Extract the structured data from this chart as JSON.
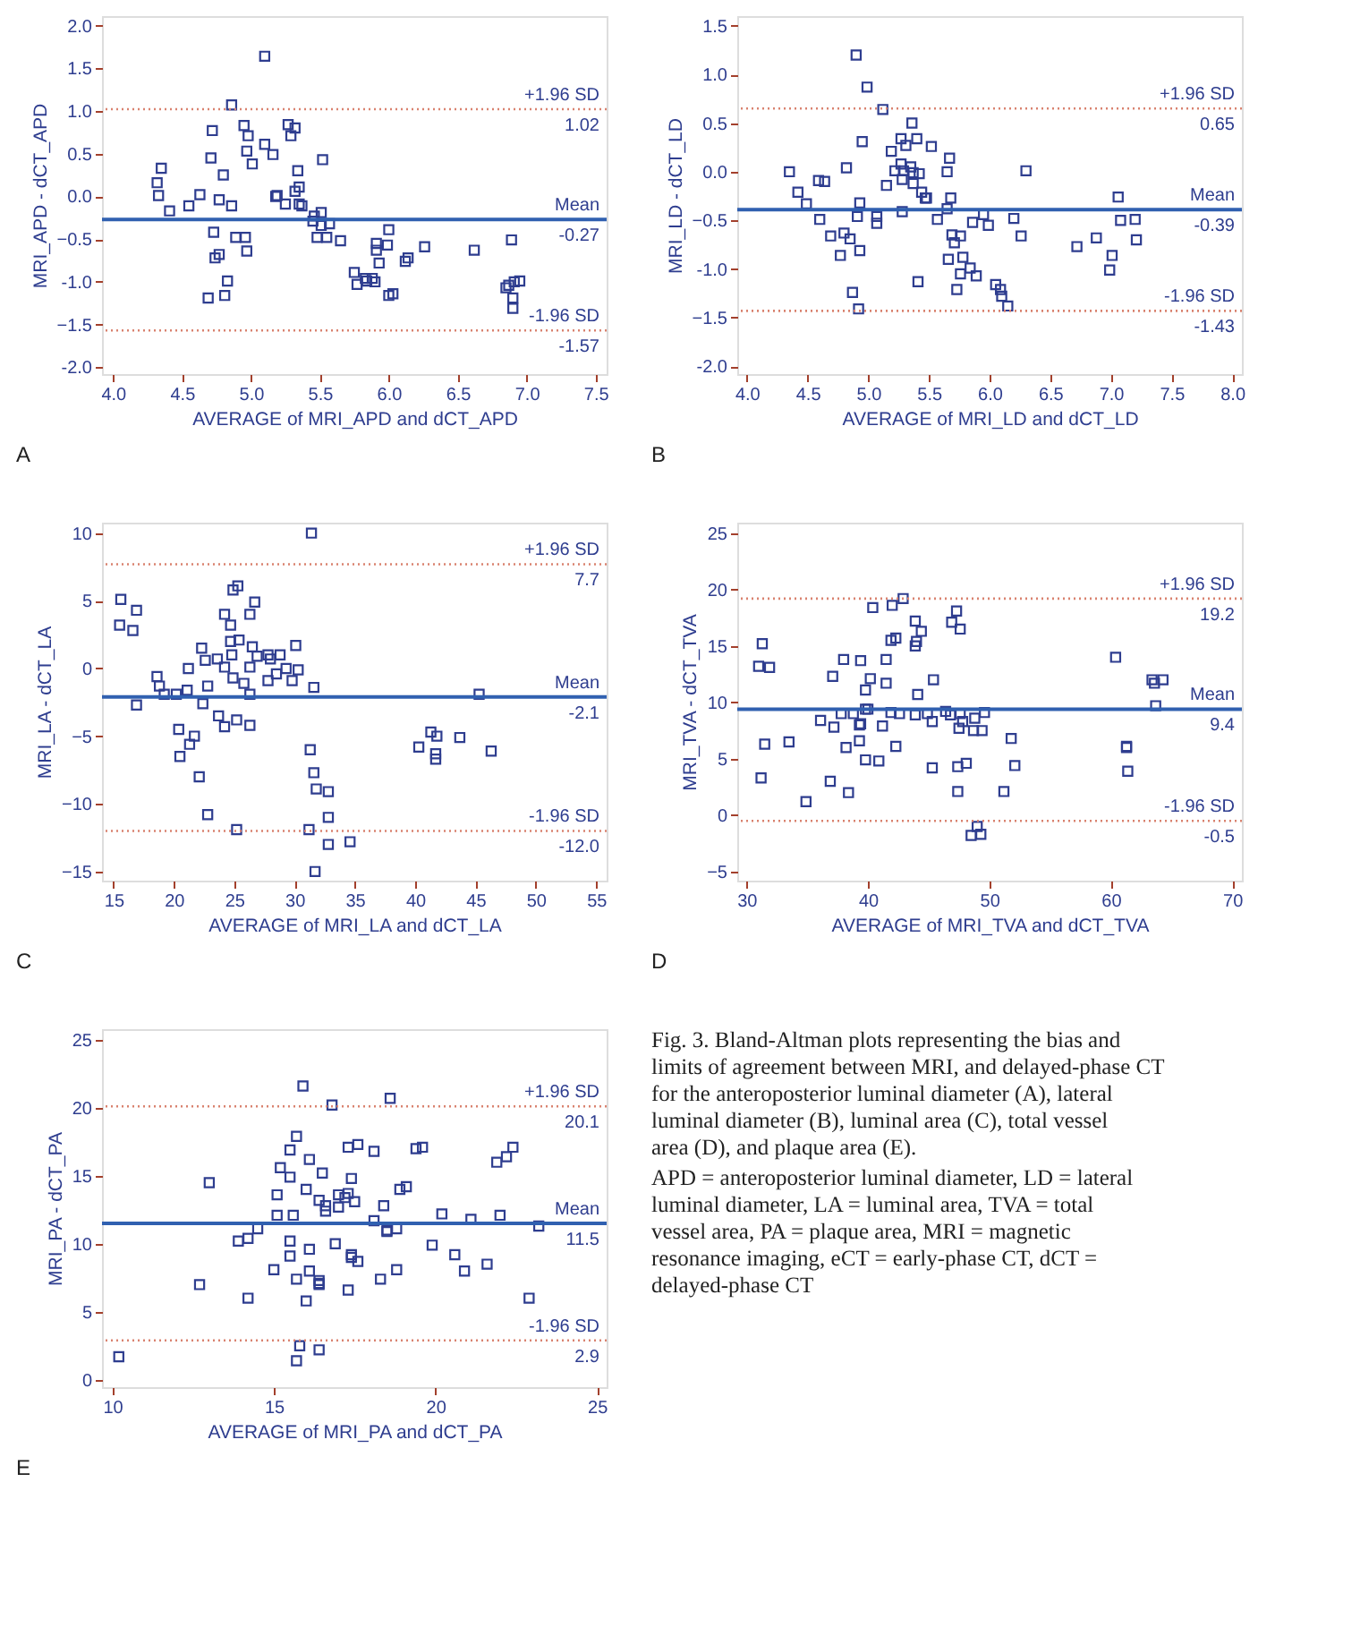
{
  "chart_data": [
    {
      "type": "scatter",
      "xlabel": "AVERAGE of MRI_APD and dCT_APD",
      "ylabel": "MRI_APD - dCT_APD",
      "marker": "square",
      "annotations": [
        "A",
        {
          "text": "1.02",
          "x": 7.58,
          "y": 1.02
        },
        {
          "text": "-0.27",
          "x": 7.58,
          "y": -0.27
        },
        {
          "text": "-1.57",
          "x": 7.58,
          "y": -1.57
        }
      ],
      "xlim": [
        3.92,
        7.58
      ],
      "xticks": [
        {
          "value": 4,
          "label": "4.0"
        },
        4.5,
        {
          "value": 5,
          "label": "5.0"
        },
        5.5,
        {
          "value": 6,
          "label": "6.0"
        },
        6.5,
        {
          "value": 7,
          "label": "7.0"
        },
        7.5
      ],
      "ylim": [
        -2.08,
        2.11
      ],
      "yticks": [
        {
          "value": 2,
          "label": "2.0"
        },
        1.5,
        {
          "value": 1,
          "label": "1.0"
        },
        0.5,
        {
          "value": 0,
          "label": "0.0"
        },
        -0.5,
        {
          "value": -1,
          "label": "-1.0"
        },
        -1.5,
        {
          "value": -2,
          "label": "-2.0"
        }
      ],
      "ref_lines": [
        {
          "axis": "y",
          "value": 1.02,
          "label": "+1.96 SD",
          "color": "#d9826f",
          "line_style": "dotted"
        },
        {
          "axis": "y",
          "value": -0.27,
          "label": "Mean",
          "color": "#3060b0",
          "line_style": "solid"
        },
        {
          "axis": "y",
          "value": -1.57,
          "label": "-1.96 SD",
          "color": "#d9826f",
          "line_style": "dotted"
        }
      ],
      "series": [
        {
          "color": "#2e3d8f",
          "x": [
            4.32,
            4.33,
            4.35,
            4.41,
            4.55,
            4.63,
            4.71,
            4.72,
            4.73,
            4.74,
            4.77,
            4.77,
            4.69,
            4.8,
            4.81,
            4.83,
            4.86,
            4.86,
            4.89,
            4.95,
            4.96,
            4.97,
            4.98,
            4.97,
            5.01,
            5.1,
            5.1,
            5.16,
            5.18,
            5.19,
            5.25,
            5.27,
            5.29,
            5.32,
            5.32,
            5.35,
            5.34,
            5.35,
            5.37,
            5.45,
            5.48,
            5.46,
            5.51,
            5.51,
            5.52,
            5.55,
            5.57,
            5.65,
            5.75,
            5.77,
            5.83,
            5.84,
            5.88,
            5.91,
            5.91,
            5.9,
            5.93,
            5.99,
            6.0,
            6.0,
            6.03,
            6.12,
            6.14,
            6.26,
            6.62,
            6.89,
            6.85,
            6.87,
            6.91,
            6.95,
            6.9,
            6.9
          ],
          "values": [
            0.16,
            0.01,
            0.33,
            -0.17,
            -0.11,
            0.02,
            0.45,
            0.77,
            -0.42,
            -0.72,
            -0.68,
            -0.04,
            -1.19,
            0.25,
            -1.16,
            -0.99,
            -0.11,
            1.07,
            -0.48,
            0.83,
            -0.48,
            0.53,
            0.71,
            -0.64,
            0.38,
            0.61,
            1.64,
            0.49,
            0.0,
            0.01,
            -0.09,
            0.84,
            0.71,
            0.8,
            0.06,
            0.11,
            0.3,
            -0.09,
            -0.11,
            -0.29,
            -0.48,
            -0.23,
            -0.19,
            -0.34,
            0.43,
            -0.48,
            -0.32,
            -0.52,
            -0.89,
            -1.03,
            -0.96,
            -0.99,
            -0.96,
            -0.55,
            -0.63,
            -1.0,
            -0.78,
            -0.57,
            -0.39,
            -1.16,
            -1.14,
            -0.76,
            -0.72,
            -0.59,
            -0.63,
            -0.51,
            -1.07,
            -1.04,
            -1.0,
            -0.99,
            -1.19,
            -1.31
          ]
        }
      ]
    },
    {
      "type": "scatter",
      "xlabel": "AVERAGE of MRI_LD and dCT_LD",
      "ylabel": "MRI_LD - dCT_LD",
      "marker": "square",
      "annotations": [
        "B",
        {
          "text": "0.65",
          "x": 8.08,
          "y": 0.65
        },
        {
          "text": "-0.39",
          "x": 8.08,
          "y": -0.39
        },
        {
          "text": "-1.43",
          "x": 8.08,
          "y": -1.43
        }
      ],
      "xlim": [
        3.92,
        8.08
      ],
      "xticks": [
        {
          "value": 4,
          "label": "4.0"
        },
        4.5,
        {
          "value": 5,
          "label": "5.0"
        },
        5.5,
        {
          "value": 6,
          "label": "6.0"
        },
        6.5,
        {
          "value": 7,
          "label": "7.0"
        },
        7.5,
        {
          "value": 8,
          "label": "8.0"
        }
      ],
      "ylim": [
        -2.08,
        1.6
      ],
      "yticks": [
        1.5,
        {
          "value": 1,
          "label": "1.0"
        },
        0.5,
        {
          "value": 0,
          "label": "0.0"
        },
        -0.5,
        {
          "value": -1,
          "label": "-1.0"
        },
        -1.5,
        {
          "value": -2,
          "label": "-2.0"
        }
      ],
      "ref_lines": [
        {
          "axis": "y",
          "value": 0.65,
          "label": "+1.96 SD",
          "color": "#d9826f",
          "line_style": "dotted"
        },
        {
          "axis": "y",
          "value": -0.39,
          "label": "Mean",
          "color": "#3060b0",
          "line_style": "solid"
        },
        {
          "axis": "y",
          "value": -1.43,
          "label": "-1.96 SD",
          "color": "#d9826f",
          "line_style": "dotted"
        }
      ],
      "series": [
        {
          "color": "#2e3d8f",
          "x": [
            4.35,
            4.42,
            4.49,
            4.59,
            4.64,
            4.6,
            4.69,
            4.77,
            4.8,
            4.82,
            4.85,
            4.87,
            4.9,
            4.91,
            4.92,
            4.93,
            4.93,
            4.95,
            4.99,
            5.07,
            5.07,
            5.12,
            5.15,
            5.19,
            5.22,
            5.27,
            5.27,
            5.28,
            5.28,
            5.29,
            5.31,
            5.35,
            5.37,
            5.36,
            5.37,
            5.4,
            5.41,
            5.42,
            5.44,
            5.47,
            5.48,
            5.52,
            5.57,
            5.65,
            5.65,
            5.66,
            5.67,
            5.68,
            5.69,
            5.71,
            5.73,
            5.76,
            5.76,
            5.78,
            5.84,
            5.86,
            5.89,
            5.95,
            5.99,
            6.05,
            6.09,
            6.1,
            6.15,
            6.2,
            6.26,
            6.3,
            6.72,
            6.88,
            6.99,
            7.01,
            7.06,
            7.08,
            7.2,
            7.21
          ],
          "values": [
            0.0,
            -0.21,
            -0.33,
            -0.09,
            -0.1,
            -0.49,
            -0.66,
            -0.86,
            -0.63,
            0.04,
            -0.69,
            -1.24,
            1.2,
            -0.46,
            -1.41,
            -0.81,
            -0.32,
            0.31,
            0.87,
            -0.46,
            -0.53,
            0.64,
            -0.14,
            0.21,
            0.01,
            0.34,
            0.08,
            -0.41,
            -0.08,
            0.01,
            0.27,
            0.05,
            -0.12,
            0.5,
            -0.01,
            0.34,
            -1.13,
            -0.02,
            -0.21,
            -0.27,
            -0.27,
            0.26,
            -0.49,
            0.0,
            -0.38,
            -0.9,
            0.14,
            -0.27,
            -0.65,
            -0.73,
            -1.21,
            -0.66,
            -1.05,
            -0.88,
            -0.99,
            -0.52,
            -1.07,
            -0.44,
            -0.55,
            -1.16,
            -1.21,
            -1.28,
            -1.38,
            -0.48,
            -0.66,
            0.01,
            -0.77,
            -0.68,
            -1.01,
            -0.86,
            -0.26,
            -0.5,
            -0.49,
            -0.7
          ]
        }
      ]
    },
    {
      "type": "scatter",
      "xlabel": "AVERAGE of MRI_LA and dCT_LA",
      "ylabel": "MRI_LA - dCT_LA",
      "marker": "square",
      "annotations": [
        "C",
        {
          "text": "7.7",
          "x": 55.87,
          "y": 7.7
        },
        {
          "text": "-2.1",
          "x": 55.87,
          "y": -2.1
        },
        {
          "text": "-12.0",
          "x": 55.87,
          "y": -12.0
        }
      ],
      "xlim": [
        14.04,
        55.87
      ],
      "xticks": [
        15,
        20,
        25,
        30,
        35,
        40,
        45,
        50,
        55
      ],
      "ylim": [
        -15.67,
        10.77
      ],
      "yticks": [
        10,
        5,
        0,
        -5,
        -10,
        -15
      ],
      "ref_lines": [
        {
          "axis": "y",
          "value": 7.7,
          "label": "+1.96 SD",
          "color": "#d9826f",
          "line_style": "dotted"
        },
        {
          "axis": "y",
          "value": -2.1,
          "label": "Mean",
          "color": "#3060b0",
          "line_style": "solid"
        },
        {
          "axis": "y",
          "value": -12.0,
          "label": "-1.96 SD",
          "color": "#d9826f",
          "line_style": "dotted"
        }
      ],
      "series": [
        {
          "color": "#2e3d8f",
          "x": [
            15.5,
            15.6,
            16.6,
            16.9,
            16.9,
            18.6,
            18.8,
            19.2,
            20.2,
            20.4,
            20.5,
            21.1,
            21.2,
            21.3,
            21.7,
            22.1,
            22.3,
            22.4,
            22.6,
            22.8,
            22.8,
            23.6,
            23.7,
            24.2,
            24.2,
            24.2,
            24.7,
            24.7,
            24.8,
            24.9,
            24.9,
            25.3,
            25.2,
            25.2,
            25.4,
            25.8,
            26.3,
            26.3,
            26.3,
            26.3,
            26.5,
            26.7,
            26.9,
            27.8,
            27.8,
            28.0,
            28.5,
            28.8,
            29.3,
            29.8,
            30.1,
            30.3,
            31.3,
            31.4,
            31.2,
            31.6,
            31.6,
            31.8,
            31.7,
            32.8,
            32.8,
            32.8,
            34.6,
            40.3,
            41.3,
            41.7,
            41.7,
            41.8,
            43.7,
            45.3,
            46.3
          ],
          "values": [
            3.2,
            5.1,
            2.8,
            4.3,
            -2.7,
            -0.6,
            -1.3,
            -1.9,
            -1.9,
            -4.5,
            -6.5,
            -1.6,
            0.0,
            -5.6,
            -5.0,
            -8.0,
            1.5,
            -2.6,
            0.6,
            -1.3,
            -10.8,
            0.7,
            -3.5,
            4.0,
            -4.3,
            0.1,
            3.2,
            2.0,
            1.0,
            -0.7,
            5.8,
            6.1,
            -3.8,
            -11.9,
            2.1,
            -1.1,
            4.0,
            0.1,
            -4.2,
            -1.9,
            1.6,
            4.9,
            0.9,
            1.0,
            -0.9,
            0.7,
            -0.4,
            1.0,
            0.0,
            -0.9,
            1.7,
            -0.1,
            -6.0,
            10.0,
            -11.9,
            -1.4,
            -7.7,
            -8.9,
            -15.0,
            -9.1,
            -11.0,
            -13.0,
            -12.8,
            -5.8,
            -4.7,
            -6.7,
            -6.3,
            -5.0,
            -5.1,
            -1.9,
            -6.1
          ]
        }
      ]
    },
    {
      "type": "scatter",
      "xlabel": "AVERAGE of MRI_TVA and dCT_TVA",
      "ylabel": "MRI_TVA - dCT_TVA",
      "marker": "square",
      "annotations": [
        "D",
        {
          "text": "19.2",
          "x": 70.8,
          "y": 19.2
        },
        {
          "text": "9.4",
          "x": 70.8,
          "y": 9.4
        },
        {
          "text": "-0.5",
          "x": 70.8,
          "y": -0.5
        }
      ],
      "xlim": [
        29.24,
        70.8
      ],
      "xticks": [
        30,
        40,
        50,
        60,
        70
      ],
      "ylim": [
        -5.8,
        25.93
      ],
      "yticks": [
        25,
        20,
        15,
        10,
        5,
        0,
        -5
      ],
      "ref_lines": [
        {
          "axis": "y",
          "value": 19.2,
          "label": "+1.96 SD",
          "color": "#d9826f",
          "line_style": "dotted"
        },
        {
          "axis": "y",
          "value": 9.4,
          "label": "Mean",
          "color": "#3060b0",
          "line_style": "solid"
        },
        {
          "axis": "y",
          "value": -0.5,
          "label": "-1.96 SD",
          "color": "#d9826f",
          "line_style": "dotted"
        }
      ],
      "series": [
        {
          "color": "#2e3d8f",
          "x": [
            31.0,
            31.3,
            31.5,
            31.2,
            31.9,
            33.5,
            34.9,
            36.1,
            36.9,
            37.1,
            37.2,
            37.8,
            38.0,
            38.2,
            38.4,
            38.8,
            39.3,
            39.3,
            39.4,
            39.4,
            39.8,
            39.8,
            39.8,
            40.0,
            40.2,
            40.4,
            40.9,
            41.2,
            41.5,
            41.5,
            41.9,
            41.9,
            42.0,
            42.3,
            42.3,
            42.6,
            42.9,
            43.9,
            43.9,
            43.9,
            44.0,
            44.1,
            44.4,
            44.9,
            45.3,
            45.3,
            45.4,
            46.4,
            46.8,
            46.9,
            47.3,
            47.4,
            47.4,
            47.5,
            47.6,
            47.6,
            47.8,
            48.1,
            48.5,
            48.7,
            48.8,
            49.0,
            49.3,
            49.4,
            49.6,
            51.2,
            51.8,
            52.1,
            60.4,
            61.3,
            61.3,
            61.4,
            63.4,
            63.6,
            63.7,
            64.3
          ],
          "values": [
            13.2,
            15.2,
            6.3,
            3.3,
            13.1,
            6.5,
            1.2,
            8.4,
            3.0,
            12.3,
            7.8,
            9.0,
            13.8,
            6.0,
            2.0,
            9.0,
            6.6,
            8.0,
            13.7,
            8.1,
            4.9,
            11.1,
            9.4,
            9.4,
            12.1,
            18.4,
            4.8,
            7.9,
            13.8,
            11.7,
            15.5,
            9.1,
            18.6,
            6.1,
            15.7,
            9.0,
            19.2,
            17.2,
            15.0,
            8.9,
            15.4,
            10.7,
            16.3,
            9.0,
            8.3,
            4.2,
            12.0,
            9.2,
            8.9,
            17.1,
            18.1,
            2.1,
            4.3,
            7.7,
            9.0,
            16.5,
            8.3,
            4.6,
            -1.8,
            7.5,
            8.6,
            -1.0,
            -1.7,
            7.5,
            9.1,
            2.1,
            6.8,
            4.4,
            14.0,
            6.1,
            6.0,
            3.9,
            12.0,
            11.7,
            9.7,
            12.0
          ]
        }
      ]
    },
    {
      "type": "scatter",
      "xlabel": "AVERAGE of MRI_PA and dCT_PA",
      "ylabel": "MRI_PA - dCT_PA",
      "marker": "square",
      "annotations": [
        "E",
        {
          "text": "20.1",
          "x": 25.3,
          "y": 20.1
        },
        {
          "text": "11.5",
          "x": 25.3,
          "y": 11.5
        },
        {
          "text": "2.9",
          "x": 25.3,
          "y": 2.9
        }
      ],
      "xlim": [
        9.68,
        25.3
      ],
      "xticks": [
        10,
        15,
        20,
        25
      ],
      "ylim": [
        -0.54,
        25.78
      ],
      "yticks": [
        25,
        20,
        15,
        10,
        5,
        0
      ],
      "ref_lines": [
        {
          "axis": "y",
          "value": 20.1,
          "label": "+1.96 SD",
          "color": "#d9826f",
          "line_style": "dotted"
        },
        {
          "axis": "y",
          "value": 11.5,
          "label": "Mean",
          "color": "#3060b0",
          "line_style": "solid"
        },
        {
          "axis": "y",
          "value": 2.9,
          "label": "-1.96 SD",
          "color": "#d9826f",
          "line_style": "dotted"
        }
      ],
      "series": [
        {
          "color": "#2e3d8f",
          "x": [
            10.2,
            12.7,
            13.0,
            13.9,
            14.2,
            14.2,
            14.5,
            15.0,
            15.1,
            15.1,
            15.2,
            15.5,
            15.5,
            15.5,
            15.5,
            15.6,
            15.7,
            15.7,
            15.7,
            15.8,
            15.9,
            16.0,
            16.0,
            16.1,
            16.1,
            16.1,
            16.4,
            16.4,
            16.4,
            16.4,
            16.5,
            16.4,
            16.6,
            16.6,
            16.8,
            16.9,
            17.0,
            17.0,
            17.2,
            17.3,
            17.3,
            17.3,
            17.4,
            17.4,
            17.4,
            17.5,
            17.6,
            17.6,
            18.1,
            18.1,
            18.3,
            18.4,
            18.5,
            18.5,
            18.6,
            18.8,
            18.8,
            18.9,
            19.1,
            19.4,
            19.6,
            19.9,
            20.2,
            20.6,
            20.9,
            21.1,
            21.6,
            21.9,
            22.0,
            22.2,
            22.4,
            22.9,
            23.2
          ],
          "values": [
            1.7,
            7.0,
            14.5,
            10.2,
            10.4,
            6.0,
            11.1,
            8.1,
            12.1,
            13.6,
            15.6,
            14.9,
            16.9,
            10.2,
            9.1,
            12.1,
            1.4,
            17.9,
            7.4,
            2.5,
            21.6,
            14.0,
            5.8,
            9.6,
            8.0,
            16.2,
            13.2,
            2.2,
            7.1,
            7.3,
            15.2,
            7.0,
            12.4,
            12.8,
            20.2,
            10.0,
            12.7,
            13.6,
            13.4,
            6.6,
            17.1,
            13.7,
            9.2,
            14.8,
            9.0,
            13.1,
            8.7,
            17.3,
            16.8,
            11.7,
            7.4,
            12.8,
            11.0,
            10.9,
            20.7,
            8.1,
            11.1,
            14.0,
            14.2,
            17.0,
            17.1,
            9.9,
            12.2,
            9.2,
            8.0,
            11.8,
            8.5,
            16.0,
            12.1,
            16.4,
            17.1,
            6.0,
            11.3
          ]
        }
      ]
    },
    {
      "type": "other",
      "annotations": [
        "Fig. 3. Bland-Altman plots representing the bias and limits of agreement between MRI, and delayed-phase CT for the anteroposterior luminal diameter (A), lateral luminal diameter (B), luminal area (C), total vessel area (D), and plaque area (E).",
        "APD = anteroposterior luminal diameter, LD = lateral luminal diameter, LA = luminal area, TVA = total vessel area, PA = plaque area, MRI = magnetic resonance imaging, eCT = early-phase CT, dCT = delayed-phase CT"
      ]
    }
  ]
}
